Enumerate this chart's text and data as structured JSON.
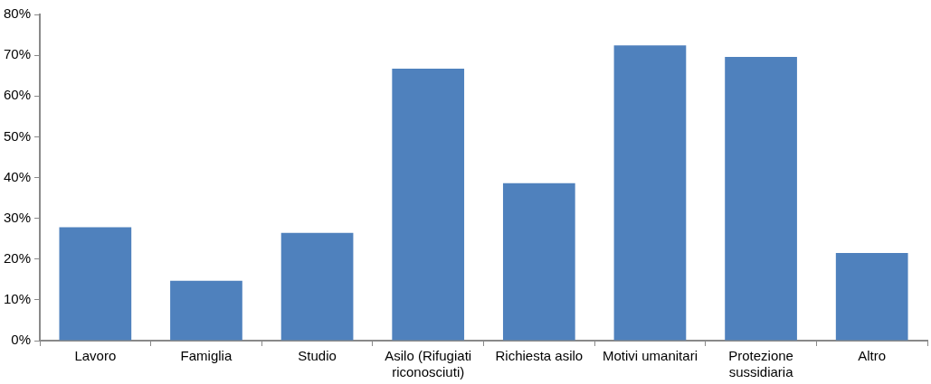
{
  "chart_data": {
    "type": "bar",
    "categories": [
      "Lavoro",
      "Famiglia",
      "Studio",
      "Asilo (Rifugiati riconosciuti)",
      "Richiesta asilo",
      "Motivi umanitari",
      "Protezione sussidiaria",
      "Altro"
    ],
    "values": [
      27.8,
      14.7,
      26.4,
      66.7,
      38.6,
      72.4,
      69.6,
      21.5
    ],
    "color": "#4f81bd",
    "ylim": [
      0,
      80
    ],
    "yticks": [
      {
        "value": 0,
        "label": "0%"
      },
      {
        "value": 10,
        "label": "10%"
      },
      {
        "value": 20,
        "label": "20%"
      },
      {
        "value": 30,
        "label": "30%"
      },
      {
        "value": 40,
        "label": "40%"
      },
      {
        "value": 50,
        "label": "50%"
      },
      {
        "value": 60,
        "label": "60%"
      },
      {
        "value": 70,
        "label": "70%"
      },
      {
        "value": 80,
        "label": "80%"
      }
    ],
    "grid": false,
    "legend": false
  }
}
